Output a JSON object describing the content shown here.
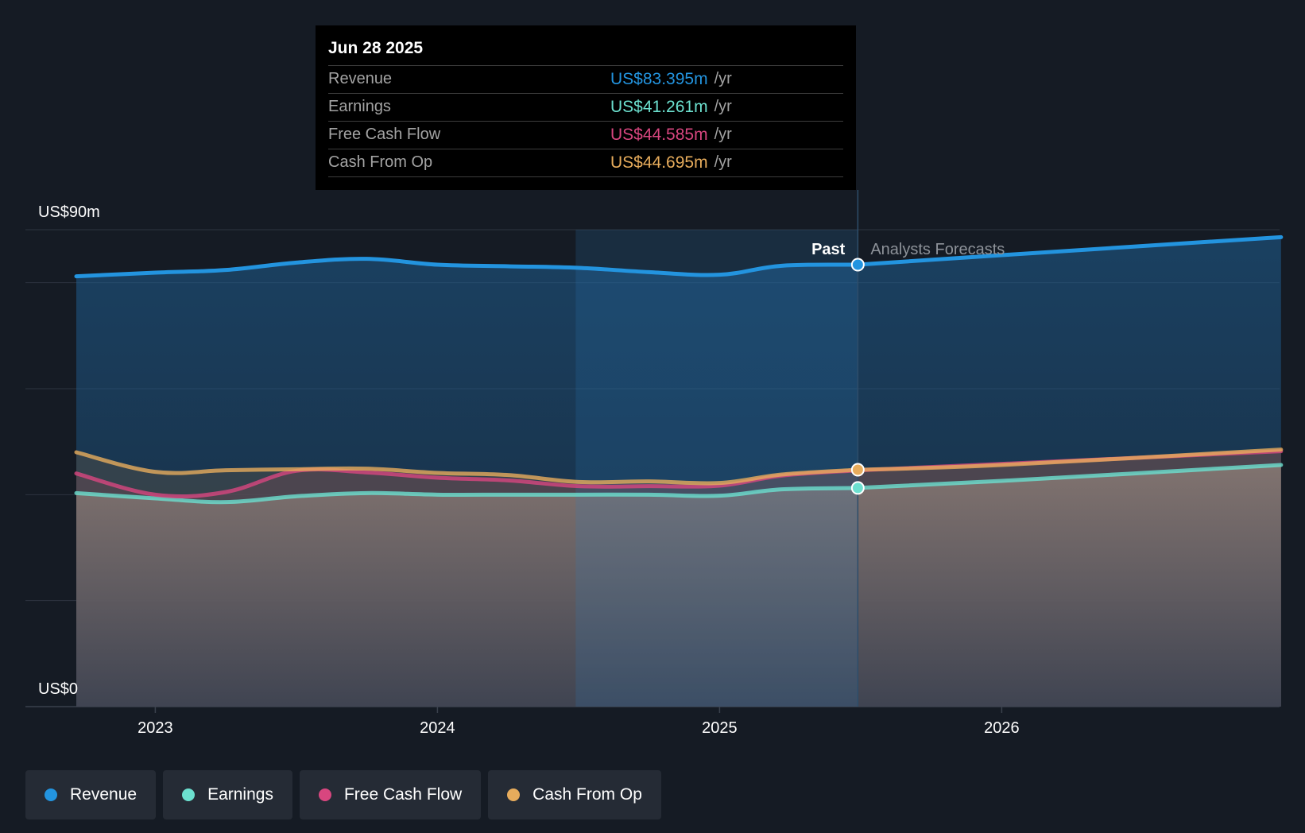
{
  "colors": {
    "revenue": "#2394df",
    "earnings": "#6ce0cf",
    "fcf": "#d8467f",
    "cfo": "#e7ac5c",
    "background": "#151b24"
  },
  "tooltip": {
    "date": "Jun 28 2025",
    "rows": [
      {
        "label": "Revenue",
        "value": "US$83.395m",
        "unit": "/yr",
        "color_key": "revenue"
      },
      {
        "label": "Earnings",
        "value": "US$41.261m",
        "unit": "/yr",
        "color_key": "earnings"
      },
      {
        "label": "Free Cash Flow",
        "value": "US$44.585m",
        "unit": "/yr",
        "color_key": "fcf"
      },
      {
        "label": "Cash From Op",
        "value": "US$44.695m",
        "unit": "/yr",
        "color_key": "cfo"
      }
    ]
  },
  "legend": [
    {
      "label": "Revenue",
      "color_key": "revenue"
    },
    {
      "label": "Earnings",
      "color_key": "earnings"
    },
    {
      "label": "Free Cash Flow",
      "color_key": "fcf"
    },
    {
      "label": "Cash From Op",
      "color_key": "cfo"
    }
  ],
  "chart_data": {
    "type": "area",
    "title": "",
    "ylim": [
      0,
      90
    ],
    "y_unit": "US$m",
    "y_tick_labels": [
      {
        "value": 90,
        "label": "US$90m"
      },
      {
        "value": 0,
        "label": "US$0"
      }
    ],
    "gridlines": [
      0,
      20,
      40,
      60,
      80,
      90
    ],
    "xlim": [
      2022.72,
      2026.99
    ],
    "x_ticks": [
      {
        "value": 2023.0,
        "label": "2023"
      },
      {
        "value": 2024.0,
        "label": "2024"
      },
      {
        "value": 2025.0,
        "label": "2025"
      },
      {
        "value": 2026.0,
        "label": "2026"
      }
    ],
    "highlight_start": 2024.49,
    "divider_x": 2025.49,
    "past_label": "Past",
    "forecast_label": "Analysts Forecasts",
    "series": [
      {
        "name": "Revenue",
        "color_key": "revenue",
        "x": [
          2022.72,
          2023.0,
          2023.25,
          2023.5,
          2023.75,
          2024.0,
          2024.25,
          2024.5,
          2024.75,
          2025.0,
          2025.22,
          2025.49
        ],
        "values": [
          81.2,
          81.9,
          82.4,
          83.8,
          84.5,
          83.4,
          83.1,
          82.8,
          82.0,
          81.5,
          83.2,
          83.395
        ],
        "forecast_x": [
          2025.49,
          2026.0,
          2026.99
        ],
        "forecast_values": [
          83.395,
          85.2,
          88.6
        ]
      },
      {
        "name": "Earnings",
        "color_key": "earnings",
        "x": [
          2022.72,
          2023.0,
          2023.25,
          2023.5,
          2023.75,
          2024.0,
          2024.25,
          2024.5,
          2024.75,
          2025.0,
          2025.22,
          2025.49
        ],
        "values": [
          40.3,
          39.3,
          38.6,
          39.7,
          40.3,
          40.0,
          40.0,
          40.0,
          40.0,
          39.8,
          41.0,
          41.261
        ],
        "forecast_x": [
          2025.49,
          2026.0,
          2026.99
        ],
        "forecast_values": [
          41.261,
          42.6,
          45.6
        ]
      },
      {
        "name": "Free Cash Flow",
        "color_key": "fcf",
        "x": [
          2022.72,
          2023.0,
          2023.25,
          2023.5,
          2023.75,
          2024.0,
          2024.25,
          2024.5,
          2024.75,
          2025.0,
          2025.22,
          2025.49
        ],
        "values": [
          44.0,
          40.0,
          40.5,
          44.5,
          44.2,
          43.2,
          42.7,
          41.6,
          41.6,
          41.7,
          43.6,
          44.585
        ],
        "forecast_x": [
          2025.49,
          2026.0,
          2026.99
        ],
        "forecast_values": [
          44.585,
          45.8,
          48.2
        ]
      },
      {
        "name": "Cash From Op",
        "color_key": "cfo",
        "x": [
          2022.72,
          2023.0,
          2023.25,
          2023.5,
          2023.75,
          2024.0,
          2024.25,
          2024.5,
          2024.75,
          2025.0,
          2025.22,
          2025.49
        ],
        "values": [
          48.0,
          44.3,
          44.6,
          44.8,
          44.9,
          44.1,
          43.7,
          42.4,
          42.5,
          42.2,
          43.8,
          44.695
        ],
        "forecast_x": [
          2025.49,
          2026.0,
          2026.99
        ],
        "forecast_values": [
          44.695,
          45.6,
          48.5
        ]
      }
    ]
  }
}
